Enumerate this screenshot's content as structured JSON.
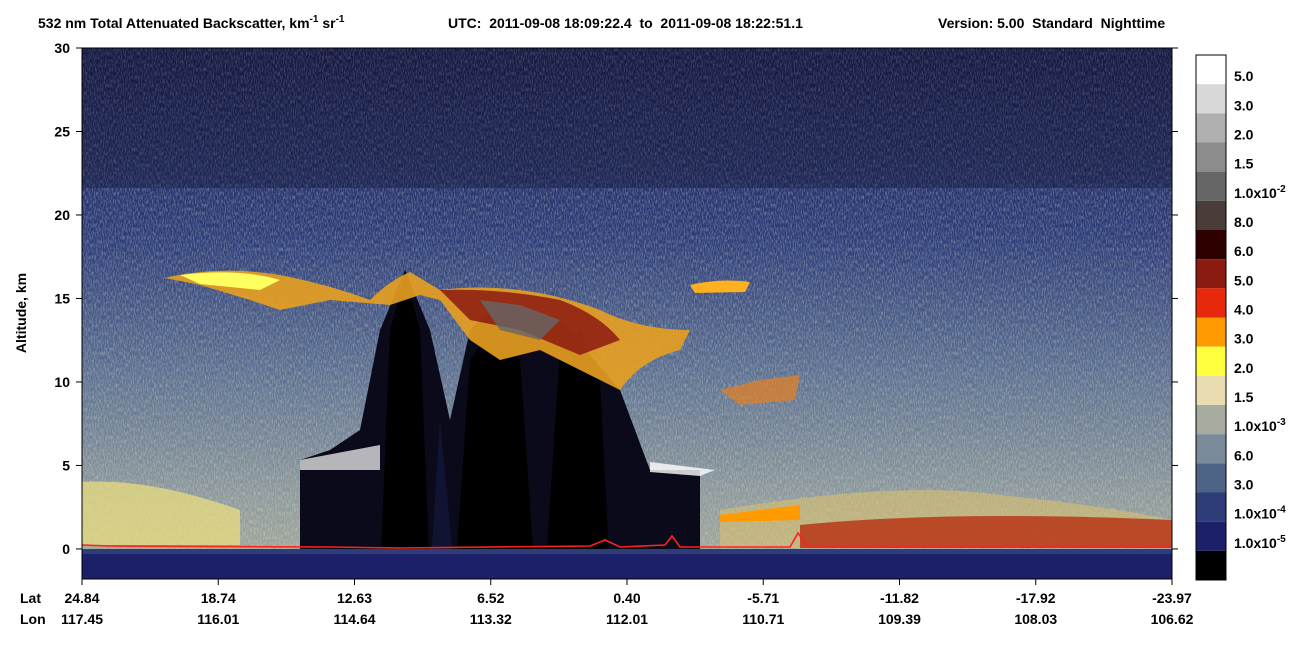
{
  "title": {
    "main": "532 nm Total Attenuated Backscatter, km",
    "exp1": "-1",
    "unit2": " sr",
    "exp2": "-1",
    "utc": "UTC:  2011-09-08 18:09:22.4  to  2011-09-08 18:22:51.1",
    "version": "Version: 5.00  Standard  Nighttime"
  },
  "y_axis": {
    "label": "Altitude, km",
    "ylim": [
      -1.8,
      30
    ],
    "yticks": [
      0,
      5,
      10,
      15,
      20,
      25,
      30
    ]
  },
  "x_axis": {
    "lat_label": "Lat",
    "lon_label": "Lon",
    "lat": [
      "24.84",
      "18.74",
      "12.63",
      "6.52",
      "0.40",
      "-5.71",
      "-11.82",
      "-17.92",
      "-23.97"
    ],
    "lon": [
      "117.45",
      "116.01",
      "114.64",
      "113.32",
      "112.01",
      "110.71",
      "109.39",
      "108.03",
      "106.62"
    ]
  },
  "colorbar": {
    "colors": [
      "#ffffff",
      "#d8d8d8",
      "#b0b0b0",
      "#8c8c8c",
      "#666666",
      "#4a3c38",
      "#2e0000",
      "#8b1a10",
      "#e8280a",
      "#ff9a00",
      "#ffff40",
      "#e8dcb0",
      "#a8aca0",
      "#7a8a9a",
      "#4e6486",
      "#2e3c78",
      "#1c2068",
      "#000000"
    ],
    "labels": [
      {
        "text": "5.0"
      },
      {
        "text": "3.0"
      },
      {
        "text": "2.0"
      },
      {
        "text": "1.5"
      },
      {
        "text": "1.0x10",
        "exp": "-2"
      },
      {
        "text": "8.0"
      },
      {
        "text": "6.0"
      },
      {
        "text": "5.0"
      },
      {
        "text": "4.0"
      },
      {
        "text": "3.0"
      },
      {
        "text": "2.0"
      },
      {
        "text": "1.5"
      },
      {
        "text": "1.0x10",
        "exp": "-3"
      },
      {
        "text": "6.0"
      },
      {
        "text": "3.0"
      },
      {
        "text": "1.0x10",
        "exp": "-4"
      },
      {
        "text": "1.0x10",
        "exp": "-5"
      }
    ]
  }
}
